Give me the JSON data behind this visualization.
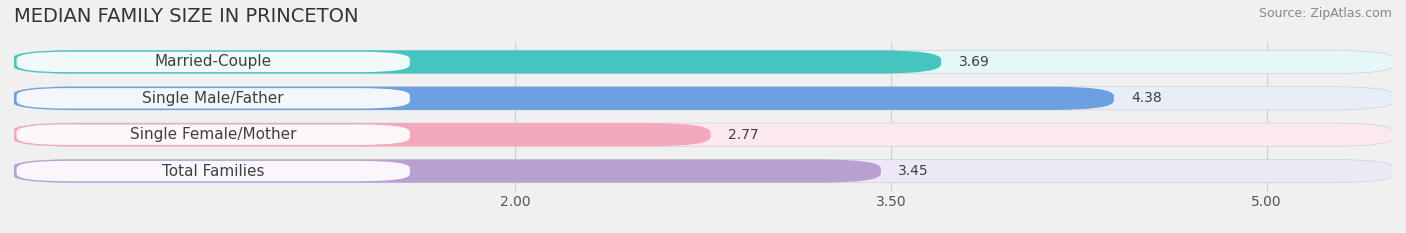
{
  "title": "MEDIAN FAMILY SIZE IN PRINCETON",
  "source": "Source: ZipAtlas.com",
  "categories": [
    "Married-Couple",
    "Single Male/Father",
    "Single Female/Mother",
    "Total Families"
  ],
  "values": [
    3.69,
    4.38,
    2.77,
    3.45
  ],
  "bar_colors": [
    "#45c4c0",
    "#6da0e0",
    "#f4a8bc",
    "#b8a0d0"
  ],
  "bar_bg_colors": [
    "#e6f7f7",
    "#e6eef8",
    "#fce8f0",
    "#ede8f5"
  ],
  "xlim_data": [
    0.0,
    5.5
  ],
  "x_axis_start": 1.6,
  "xticks": [
    2.0,
    3.5,
    5.0
  ],
  "xticklabels": [
    "2.00",
    "3.50",
    "5.00"
  ],
  "title_fontsize": 14,
  "source_fontsize": 9,
  "bar_label_fontsize": 11,
  "value_fontsize": 10,
  "tick_fontsize": 10,
  "bar_height": 0.62,
  "background_color": "#f0f0f0",
  "bar_bg_full_color": "#e8e8ee"
}
